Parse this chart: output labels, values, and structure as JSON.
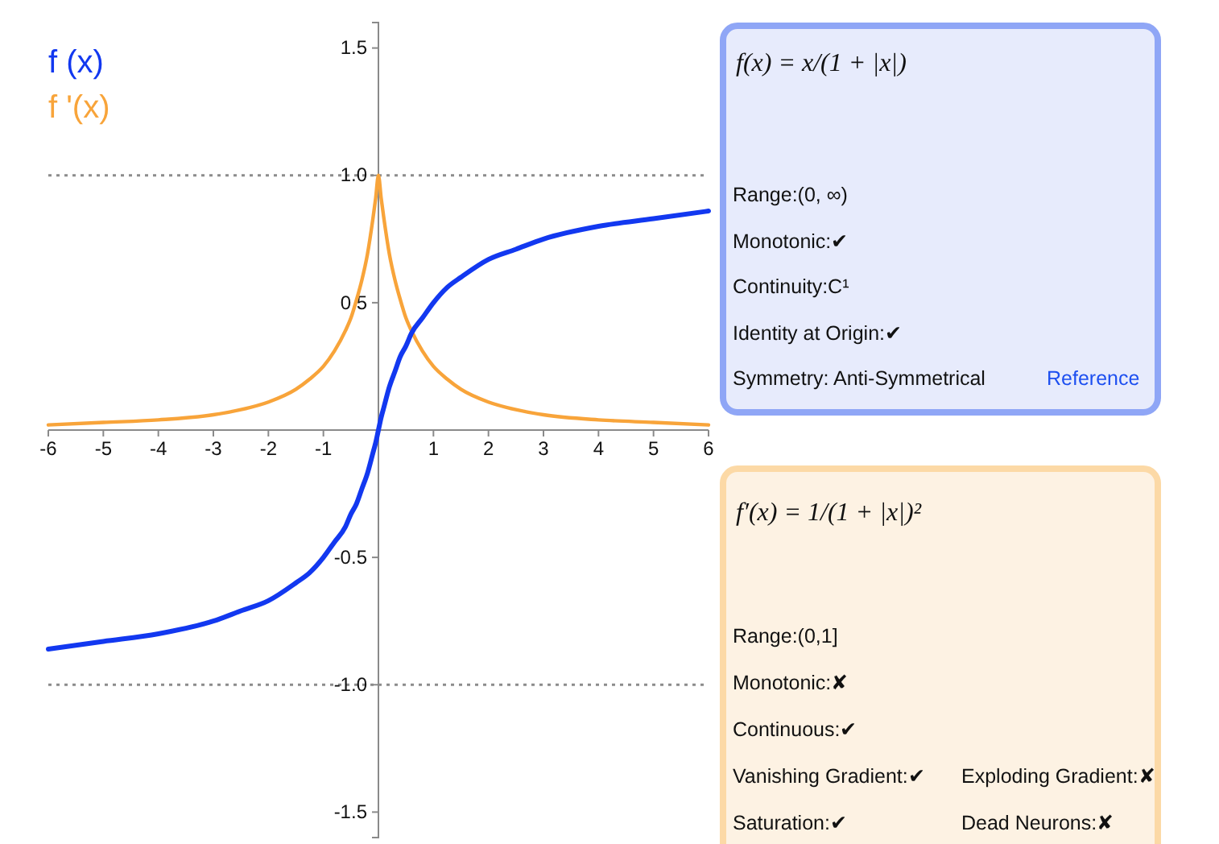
{
  "chart_data": [
    {
      "type": "line",
      "x": [
        -6,
        -5,
        -4,
        -3,
        -2.5,
        -2,
        -1.5,
        -1.25,
        -1,
        -0.8,
        -0.6,
        -0.5,
        -0.4,
        -0.3,
        -0.2,
        -0.1,
        -0.05,
        0,
        0.05,
        0.1,
        0.2,
        0.3,
        0.4,
        0.5,
        0.6,
        0.8,
        1,
        1.25,
        1.5,
        2,
        2.5,
        3,
        4,
        5,
        6
      ],
      "series": [
        {
          "name": "f (x)",
          "color": "#1238f0",
          "values": [
            -0.86,
            -0.83,
            -0.8,
            -0.75,
            -0.71,
            -0.67,
            -0.6,
            -0.56,
            -0.5,
            -0.44,
            -0.38,
            -0.33,
            -0.29,
            -0.23,
            -0.17,
            -0.09,
            -0.05,
            0,
            0.05,
            0.09,
            0.17,
            0.23,
            0.29,
            0.33,
            0.38,
            0.44,
            0.5,
            0.56,
            0.6,
            0.67,
            0.71,
            0.75,
            0.8,
            0.83,
            0.86
          ]
        },
        {
          "name": "f '(x)",
          "color": "#f8a43a",
          "values": [
            0.02,
            0.03,
            0.04,
            0.06,
            0.08,
            0.11,
            0.16,
            0.2,
            0.25,
            0.31,
            0.39,
            0.44,
            0.51,
            0.59,
            0.69,
            0.83,
            0.91,
            1,
            0.91,
            0.83,
            0.69,
            0.59,
            0.51,
            0.44,
            0.39,
            0.31,
            0.25,
            0.2,
            0.16,
            0.11,
            0.08,
            0.06,
            0.04,
            0.03,
            0.02
          ]
        }
      ],
      "xlim": [
        -6,
        6
      ],
      "ylim": [
        -1.6,
        1.6
      ],
      "xticks": [
        -6,
        -5,
        -4,
        -3,
        -2,
        -1,
        1,
        2,
        3,
        4,
        5,
        6
      ],
      "yticks": [
        -1.5,
        {
          "value": -1,
          "label": "-1.0"
        },
        -0.5,
        0.5,
        {
          "value": 1,
          "label": "1.0"
        },
        1.5
      ],
      "ref_lines": [
        {
          "axis": "y",
          "value": 1,
          "color": "#8c8c8c",
          "line_style": "dotted"
        },
        {
          "axis": "y",
          "value": -1,
          "color": "#8c8c8c",
          "line_style": "dotted"
        }
      ],
      "legend": "top left"
    },
    {
      "type": "other",
      "title": "f(x) = x/(1 + |x|)",
      "annotations": [
        "Range:(0, ∞)",
        "Monotonic:✔",
        "Continuity:C¹",
        "Identity at Origin:✔",
        "Symmetry: Anti-Symmetrical",
        "Reference"
      ]
    },
    {
      "type": "other",
      "title": "f′(x) = 1/(1 + |x|)²",
      "annotations": [
        "Range:(0,1]",
        "Monotonic:✘",
        "Continuous:✔",
        "Vanishing Gradient:✔",
        "Exploding Gradient:✘",
        "Saturation:✔",
        "Dead Neurons:✘"
      ]
    }
  ]
}
